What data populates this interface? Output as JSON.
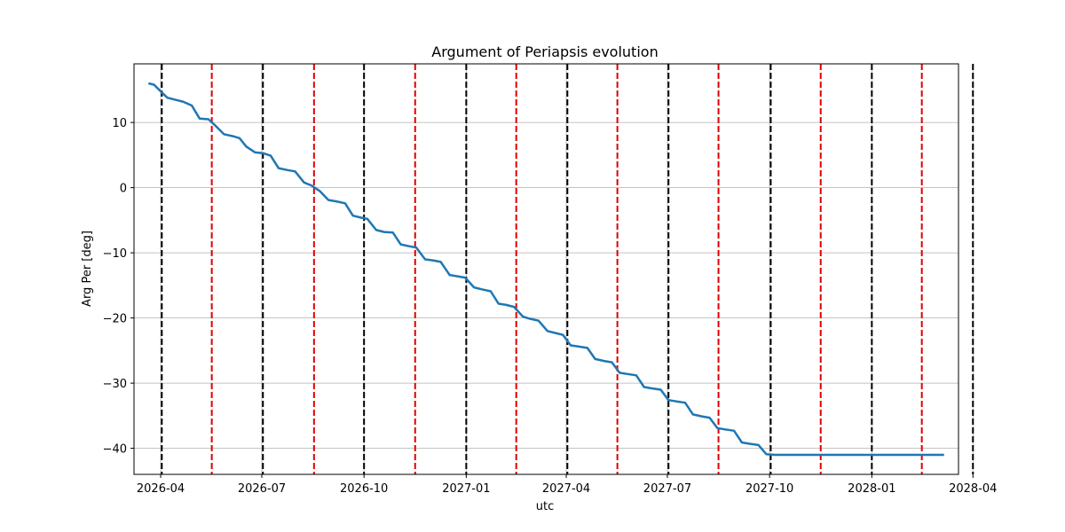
{
  "chart_data": {
    "type": "line",
    "title": "Argument of Periapsis evolution",
    "xlabel": "utc",
    "ylabel": "Arg Per [deg]",
    "grid": true,
    "x_unit": "days since 2026-01-01",
    "xlim": [
      66,
      808
    ],
    "ylim": [
      -44,
      19
    ],
    "x_ticks": [
      {
        "day": 90,
        "label": "2026-04"
      },
      {
        "day": 181,
        "label": "2026-07"
      },
      {
        "day": 273,
        "label": "2026-10"
      },
      {
        "day": 365,
        "label": "2027-01"
      },
      {
        "day": 455,
        "label": "2027-04"
      },
      {
        "day": 546,
        "label": "2027-07"
      },
      {
        "day": 638,
        "label": "2027-10"
      },
      {
        "day": 730,
        "label": "2028-01"
      },
      {
        "day": 821,
        "label": "2028-04"
      }
    ],
    "y_ticks": [
      {
        "value": 10,
        "label": "10"
      },
      {
        "value": 0,
        "label": "0"
      },
      {
        "value": -10,
        "label": "−10"
      },
      {
        "value": -20,
        "label": "−20"
      },
      {
        "value": -30,
        "label": "−30"
      },
      {
        "value": -40,
        "label": "−40"
      }
    ],
    "vlines_black": [
      91,
      182,
      273,
      365,
      456,
      547,
      639,
      730,
      821
    ],
    "vlines_red": [
      136,
      228,
      319,
      410,
      501,
      592,
      684,
      775
    ],
    "vline_colors": {
      "black": "#000000",
      "red": "#e00000"
    },
    "series": [
      {
        "name": "Arg Per",
        "color": "#1f77b4",
        "x": [
          79,
          84,
          91,
          96,
          103,
          110,
          118,
          125,
          133,
          140,
          147,
          155,
          161,
          167,
          175,
          182,
          189,
          196,
          204,
          211,
          219,
          226,
          233,
          241,
          248,
          256,
          263,
          270,
          276,
          284,
          291,
          299,
          306,
          314,
          320,
          328,
          336,
          342,
          350,
          357,
          364,
          372,
          379,
          387,
          394,
          401,
          408,
          416,
          422,
          430,
          438,
          445,
          452,
          459,
          467,
          474,
          481,
          489,
          496,
          503,
          510,
          518,
          525,
          532,
          540,
          547,
          554,
          562,
          569,
          577,
          584,
          591,
          598,
          606,
          613,
          620,
          628,
          635,
          643,
          650,
          657,
          664,
          671,
          679,
          686,
          694,
          700,
          708,
          716,
          722,
          730,
          737,
          744,
          752,
          759,
          766,
          773,
          780,
          787,
          795
        ],
        "y": [
          16.0,
          15.8,
          14.6,
          13.8,
          13.5,
          13.2,
          12.6,
          10.6,
          10.5,
          9.4,
          8.2,
          7.9,
          7.6,
          6.3,
          5.4,
          5.3,
          4.9,
          3.0,
          2.7,
          2.5,
          0.8,
          0.3,
          -0.5,
          -1.9,
          -2.1,
          -2.4,
          -4.3,
          -4.6,
          -4.8,
          -6.5,
          -6.8,
          -6.9,
          -8.7,
          -9.0,
          -9.2,
          -11.0,
          -11.2,
          -11.4,
          -13.4,
          -13.6,
          -13.8,
          -15.3,
          -15.6,
          -15.9,
          -17.8,
          -18.0,
          -18.3,
          -19.8,
          -20.1,
          -20.4,
          -22.0,
          -22.3,
          -22.6,
          -24.2,
          -24.4,
          -24.6,
          -26.3,
          -26.6,
          -26.8,
          -28.4,
          -28.6,
          -28.8,
          -30.6,
          -30.8,
          -31.0,
          -32.6,
          -32.8,
          -33.0,
          -34.8,
          -35.1,
          -35.3,
          -36.9,
          -37.1,
          -37.3,
          -39.1,
          -39.3,
          -39.5,
          -40.9,
          -41.0,
          -41.0,
          -41.0,
          -41.0,
          -41.0,
          -41.0,
          -41.0,
          -41.0,
          -41.0,
          -41.0,
          -41.0,
          -41.0,
          -41.0,
          -41.0,
          -41.0,
          -41.0,
          -41.0,
          -41.0,
          -41.0,
          -41.0,
          -41.0,
          -41.0
        ]
      }
    ]
  }
}
